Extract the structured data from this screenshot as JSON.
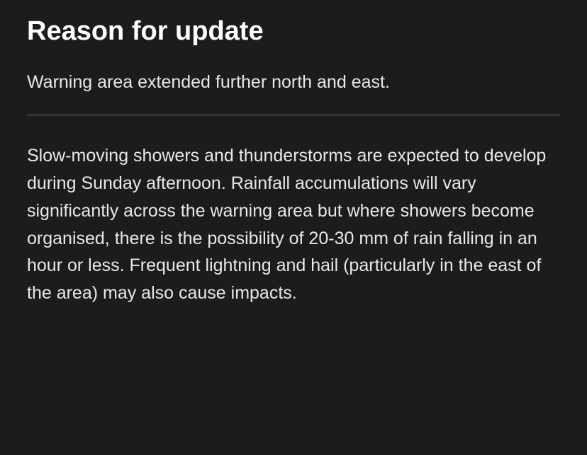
{
  "heading": "Reason for update",
  "summary": "Warning area extended further north and east.",
  "body": "Slow-moving showers and thunderstorms are expected to develop during Sunday afternoon. Rainfall accumulations will vary significantly across the warning area but where showers become organised, there is the possibility of 20-30 mm of rain falling in an hour or less. Frequent lightning and hail (particularly in the east of the area) may also cause impacts.",
  "colors": {
    "background": "#1c1c1c",
    "heading_text": "#ffffff",
    "body_text": "#e8e8e8",
    "divider": "#6a6a6a"
  },
  "typography": {
    "heading_fontsize": 38,
    "heading_weight": 700,
    "body_fontsize": 25,
    "body_weight": 400,
    "line_height_body": 1.55
  }
}
